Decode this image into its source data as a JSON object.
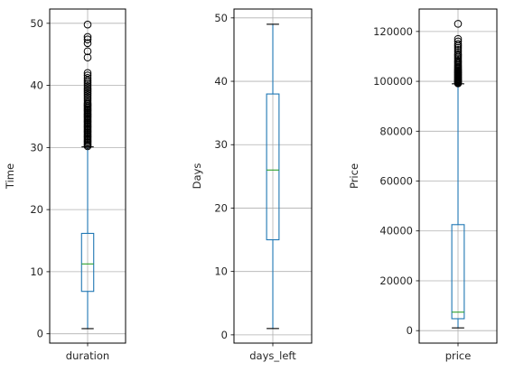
{
  "chart_data": [
    {
      "type": "box",
      "categories": [
        "duration"
      ],
      "ylabel": "Time",
      "ylim": [
        -1.5,
        52.3
      ],
      "yticks": [
        0,
        10,
        20,
        30,
        40,
        50
      ],
      "grid": true,
      "colors": {
        "box": "#1f77b4",
        "median": "#2ca02c"
      },
      "stats": {
        "whislo": 0.83,
        "q1": 6.83,
        "median": 11.25,
        "q3": 16.17,
        "whishi": 30.1
      },
      "fliers": [
        30.2,
        30.4,
        30.6,
        30.8,
        31.0,
        31.2,
        31.4,
        31.6,
        31.8,
        32.0,
        32.2,
        32.4,
        32.6,
        32.8,
        33.0,
        33.2,
        33.4,
        33.6,
        33.8,
        34.0,
        34.2,
        34.4,
        34.6,
        34.8,
        35.0,
        35.2,
        35.4,
        35.6,
        35.8,
        36.0,
        36.2,
        36.4,
        36.6,
        36.8,
        37.0,
        37.2,
        37.5,
        37.8,
        38.1,
        38.4,
        38.7,
        39.0,
        39.3,
        39.6,
        39.9,
        40.2,
        40.5,
        40.8,
        41.2,
        41.6,
        42.0,
        44.5,
        45.5,
        46.8,
        47.4,
        47.8,
        49.8
      ]
    },
    {
      "type": "box",
      "categories": [
        "days_left"
      ],
      "ylabel": "Days",
      "ylim": [
        -1.3,
        51.4
      ],
      "yticks": [
        0,
        10,
        20,
        30,
        40,
        50
      ],
      "grid": true,
      "colors": {
        "box": "#1f77b4",
        "median": "#2ca02c"
      },
      "stats": {
        "whislo": 1,
        "q1": 15,
        "median": 26,
        "q3": 38,
        "whishi": 49
      },
      "fliers": []
    },
    {
      "type": "box",
      "categories": [
        "price"
      ],
      "ylabel": "Price",
      "ylim": [
        -5000,
        129000
      ],
      "yticks": [
        0,
        20000,
        40000,
        60000,
        80000,
        100000,
        120000
      ],
      "grid": true,
      "colors": {
        "box": "#1f77b4",
        "median": "#2ca02c"
      },
      "stats": {
        "whislo": 1105,
        "q1": 4783,
        "median": 7425,
        "q3": 42521,
        "whishi": 99000
      },
      "fliers": [
        99200,
        99500,
        99800,
        100100,
        100400,
        100700,
        101000,
        101300,
        101600,
        101900,
        102200,
        102500,
        102800,
        103100,
        103400,
        103700,
        104000,
        104400,
        104800,
        105200,
        105600,
        106000,
        106500,
        107000,
        107500,
        108000,
        108600,
        109200,
        109800,
        110400,
        111000,
        111800,
        112600,
        113400,
        114200,
        115000,
        116000,
        117000,
        123071
      ]
    }
  ]
}
